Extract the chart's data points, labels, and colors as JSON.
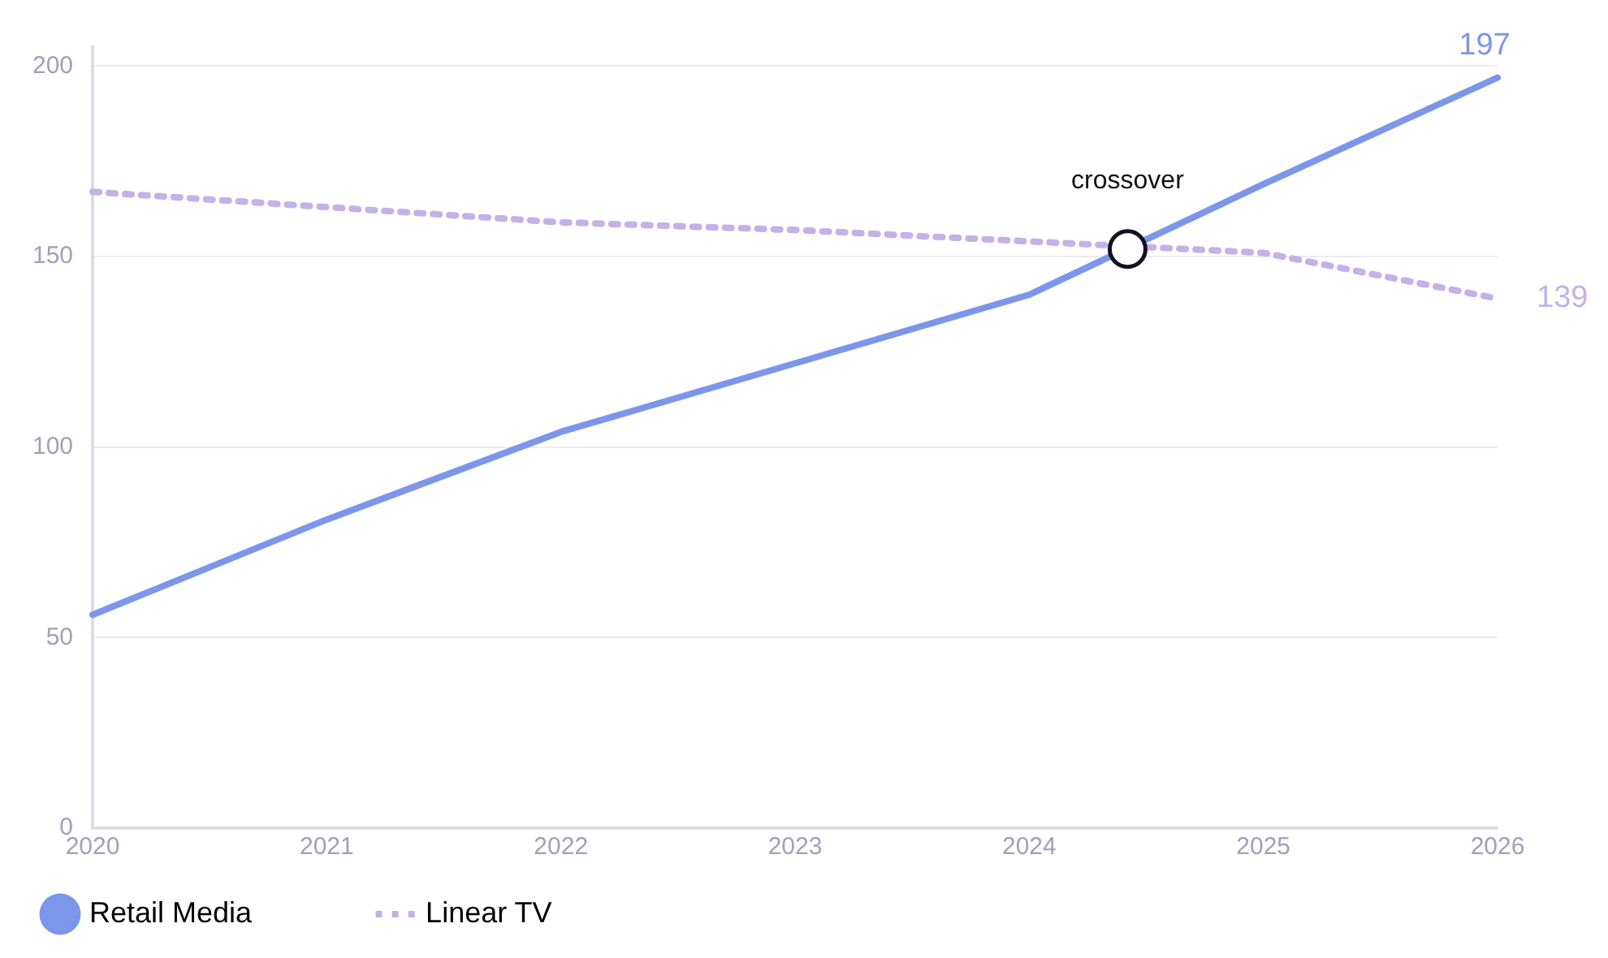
{
  "chart_data": {
    "type": "line",
    "x": [
      2020,
      2021,
      2022,
      2023,
      2024,
      2025,
      2026
    ],
    "series": [
      {
        "name": "Retail Media",
        "color": "#7b96ea",
        "line_style": "solid",
        "values": [
          56,
          81,
          104,
          122,
          140,
          169,
          197
        ],
        "value_labels": [
          null,
          null,
          null,
          null,
          null,
          null,
          "197"
        ]
      },
      {
        "name": "Linear TV",
        "color": "#c3b1e8",
        "line_style": "dotted",
        "values": [
          167,
          163,
          159,
          157,
          154,
          151,
          139
        ],
        "value_labels": [
          null,
          null,
          null,
          null,
          null,
          null,
          "139"
        ]
      }
    ],
    "xlim": [
      2020,
      2026
    ],
    "xticks": [
      2020,
      2021,
      2022,
      2023,
      2024,
      2025,
      2026
    ],
    "ylim": [
      0,
      205
    ],
    "yticks": [
      0,
      50,
      100,
      150,
      200
    ],
    "annotations": [
      {
        "text": "crossover",
        "x": 2024.42,
        "y": 152
      }
    ],
    "grid": "y",
    "legend": "bottom"
  }
}
